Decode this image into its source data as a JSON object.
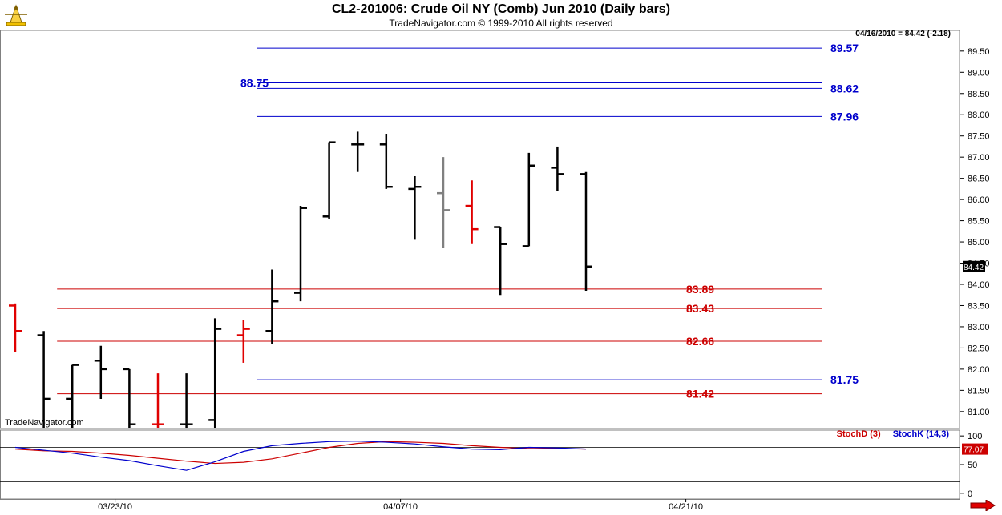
{
  "header": {
    "title": "CL2-201006:  Crude Oil NY (Comb) Jun 2010  (Daily bars)",
    "copyright": "TradeNavigator.com © 1999-2010 All rights reserved",
    "quote": "04/16/2010 = 84.42 (-2.18)",
    "watermark": "TradeNavigator.com"
  },
  "colors": {
    "up_bar": "#000000",
    "down_bar": "#e00000",
    "neutral_bar": "#808080",
    "blue_level": "#0000cc",
    "red_level": "#cc0000",
    "stoch_d": "#cc0000",
    "stoch_k": "#0000cc"
  },
  "chart_data": [
    {
      "type": "ohlc",
      "ylim": [
        80.6,
        89.95
      ],
      "yticks": [
        "81.00",
        "81.50",
        "82.00",
        "82.50",
        "83.00",
        "83.50",
        "84.00",
        "84.50",
        "85.00",
        "85.50",
        "86.00",
        "86.50",
        "87.00",
        "87.50",
        "88.00",
        "88.50",
        "89.00",
        "89.50"
      ],
      "xticks": [
        {
          "label": "03/23/10",
          "bar": 3.5
        },
        {
          "label": "04/07/10",
          "bar": 13.5
        },
        {
          "label": "04/21/10",
          "bar": 23.5
        }
      ],
      "last_price": "84.42",
      "bars": [
        {
          "o": 83.5,
          "h": 83.55,
          "l": 82.4,
          "c": 82.9,
          "color": "down_bar"
        },
        {
          "o": 82.8,
          "h": 82.9,
          "l": 80.6,
          "c": 81.3,
          "color": "up_bar"
        },
        {
          "o": 81.3,
          "h": 82.1,
          "l": 80.6,
          "c": 82.1,
          "color": "up_bar"
        },
        {
          "o": 82.2,
          "h": 82.55,
          "l": 81.3,
          "c": 82.0,
          "color": "up_bar"
        },
        {
          "o": 82.0,
          "h": 82.0,
          "l": 80.6,
          "c": 80.7,
          "color": "up_bar"
        },
        {
          "o": 80.7,
          "h": 81.9,
          "l": 80.6,
          "c": 80.7,
          "color": "down_bar"
        },
        {
          "o": 80.7,
          "h": 81.9,
          "l": 80.6,
          "c": 80.7,
          "color": "up_bar"
        },
        {
          "o": 80.8,
          "h": 83.2,
          "l": 80.6,
          "c": 82.95,
          "color": "up_bar"
        },
        {
          "o": 82.8,
          "h": 83.15,
          "l": 82.15,
          "c": 82.95,
          "color": "down_bar"
        },
        {
          "o": 82.9,
          "h": 84.35,
          "l": 82.6,
          "c": 83.6,
          "color": "up_bar"
        },
        {
          "o": 83.8,
          "h": 85.85,
          "l": 83.6,
          "c": 85.8,
          "color": "up_bar"
        },
        {
          "o": 85.6,
          "h": 87.35,
          "l": 85.55,
          "c": 87.35,
          "color": "up_bar"
        },
        {
          "o": 87.3,
          "h": 87.6,
          "l": 86.65,
          "c": 87.3,
          "color": "up_bar"
        },
        {
          "o": 87.3,
          "h": 87.55,
          "l": 86.25,
          "c": 86.3,
          "color": "up_bar"
        },
        {
          "o": 86.25,
          "h": 86.55,
          "l": 85.05,
          "c": 86.3,
          "color": "up_bar"
        },
        {
          "o": 86.15,
          "h": 87.0,
          "l": 84.85,
          "c": 85.75,
          "color": "neutral_bar"
        },
        {
          "o": 85.85,
          "h": 86.45,
          "l": 84.95,
          "c": 85.3,
          "color": "down_bar"
        },
        {
          "o": 85.35,
          "h": 85.35,
          "l": 83.75,
          "c": 84.95,
          "color": "up_bar"
        },
        {
          "o": 84.9,
          "h": 87.1,
          "l": 84.9,
          "c": 86.8,
          "color": "up_bar"
        },
        {
          "o": 86.75,
          "h": 87.25,
          "l": 86.2,
          "c": 86.6,
          "color": "up_bar"
        },
        {
          "o": 86.6,
          "h": 86.65,
          "l": 83.85,
          "c": 84.42,
          "color": "up_bar"
        }
      ],
      "levels": [
        {
          "value": 89.57,
          "label": "89.57",
          "color": "blue_level",
          "from_bar": 9
        },
        {
          "value": 88.75,
          "label": "88.75",
          "color": "blue_level",
          "from_bar": 9,
          "label_left": true
        },
        {
          "value": 88.62,
          "label": "88.62",
          "color": "blue_level",
          "from_bar": 9
        },
        {
          "value": 87.96,
          "label": "87.96",
          "color": "blue_level",
          "from_bar": 9
        },
        {
          "value": 83.89,
          "label": "83.89",
          "color": "red_level",
          "from_bar": 2
        },
        {
          "value": 83.43,
          "label": "83.43",
          "color": "red_level",
          "from_bar": 2
        },
        {
          "value": 82.66,
          "label": "82.66",
          "color": "red_level",
          "from_bar": 2
        },
        {
          "value": 81.75,
          "label": "81.75",
          "color": "blue_level",
          "from_bar": 9
        },
        {
          "value": 81.42,
          "label": "81.42",
          "color": "red_level",
          "from_bar": 2
        }
      ]
    },
    {
      "type": "line",
      "ylim": [
        -10,
        110
      ],
      "yticks": [
        "0",
        "50",
        "100"
      ],
      "guides": [
        80,
        20
      ],
      "last_value": "77.07",
      "series": [
        {
          "name": "StochD (3)",
          "color": "stoch_d",
          "values": [
            77,
            74,
            73,
            70,
            66,
            61,
            56,
            52,
            54,
            60,
            70,
            80,
            87,
            90,
            89,
            87,
            83,
            80,
            78,
            78,
            77.07
          ]
        },
        {
          "name": "StochK (14,3)",
          "color": "stoch_k",
          "values": [
            80,
            75,
            70,
            63,
            57,
            48,
            40,
            55,
            73,
            83,
            87,
            90,
            91,
            89,
            86,
            81,
            77,
            76,
            80,
            79,
            77.07
          ]
        }
      ]
    }
  ]
}
